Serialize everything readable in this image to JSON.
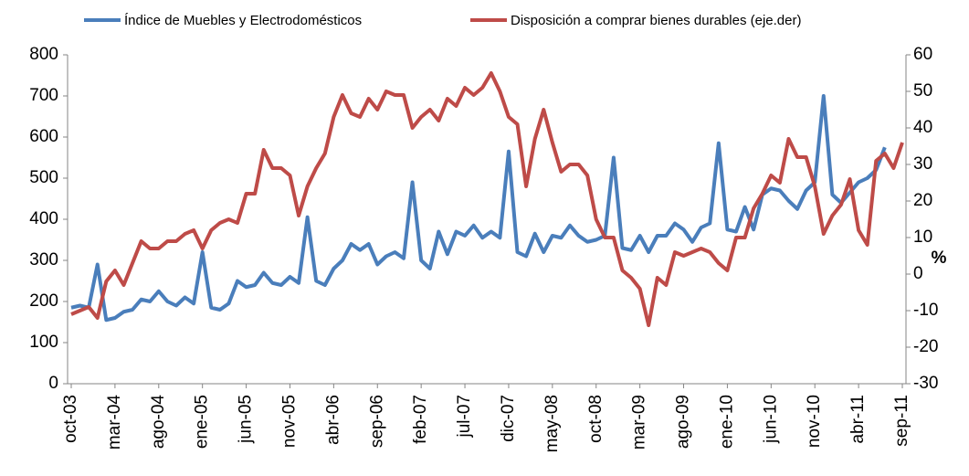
{
  "chart_data": {
    "type": "line",
    "categories": [
      "oct-03",
      null,
      null,
      null,
      null,
      "mar-04",
      null,
      null,
      null,
      null,
      "ago-04",
      null,
      null,
      null,
      null,
      "ene-05",
      null,
      null,
      null,
      null,
      "jun-05",
      null,
      null,
      null,
      null,
      "nov-05",
      null,
      null,
      null,
      null,
      "abr-06",
      null,
      null,
      null,
      null,
      "sep-06",
      null,
      null,
      null,
      null,
      "feb-07",
      null,
      null,
      null,
      null,
      "jul-07",
      null,
      null,
      null,
      null,
      "dic-07",
      null,
      null,
      null,
      null,
      "may-08",
      null,
      null,
      null,
      null,
      "oct-08",
      null,
      null,
      null,
      null,
      "mar-09",
      null,
      null,
      null,
      null,
      "ago-09",
      null,
      null,
      null,
      null,
      "ene-10",
      null,
      null,
      null,
      null,
      "jun-10",
      null,
      null,
      null,
      null,
      "nov-10",
      null,
      null,
      null,
      null,
      "abr-11",
      null,
      null,
      null,
      null,
      "sep-11"
    ],
    "series": [
      {
        "name": "Índice de Muebles y Electrodomésticos",
        "color": "#4a7ebb",
        "values": [
          185,
          190,
          185,
          290,
          155,
          160,
          175,
          180,
          205,
          200,
          225,
          200,
          190,
          210,
          195,
          320,
          185,
          180,
          195,
          250,
          235,
          240,
          270,
          245,
          240,
          260,
          245,
          405,
          250,
          240,
          280,
          300,
          340,
          325,
          340,
          290,
          310,
          320,
          305,
          490,
          300,
          280,
          370,
          315,
          370,
          360,
          385,
          355,
          370,
          355,
          565,
          320,
          310,
          365,
          320,
          360,
          355,
          385,
          360,
          345,
          350,
          360,
          550,
          330,
          325,
          360,
          320,
          360,
          360,
          390,
          375,
          345,
          380,
          390,
          585,
          375,
          370,
          430,
          375,
          460,
          475,
          470,
          445,
          425,
          470,
          490,
          700,
          460,
          440,
          465,
          490,
          500,
          520,
          575,
          null,
          null
        ]
      },
      {
        "name": "Disposición a comprar bienes durables (eje.der)",
        "color": "#be4b48",
        "axis": "y2",
        "values": [
          -11,
          -10,
          -9,
          -12,
          -2,
          1,
          -3,
          3,
          9,
          7,
          7,
          9,
          9,
          11,
          12,
          7,
          12,
          14,
          15,
          14,
          22,
          22,
          34,
          29,
          29,
          27,
          16,
          24,
          29,
          33,
          43,
          49,
          44,
          43,
          48,
          45,
          50,
          49,
          49,
          40,
          43,
          45,
          42,
          48,
          46,
          51,
          49,
          51,
          55,
          50,
          43,
          41,
          24,
          37,
          45,
          36,
          28,
          30,
          30,
          27,
          15,
          10,
          10,
          1,
          -1,
          -4,
          -14,
          -1,
          -3,
          6,
          5,
          6,
          7,
          6,
          3,
          1,
          10,
          10,
          18,
          22,
          27,
          25,
          37,
          32,
          32,
          24,
          11,
          16,
          19,
          26,
          12,
          8,
          31,
          33,
          29,
          36
        ]
      }
    ],
    "ylim": [
      0,
      800
    ],
    "yticks": [
      0,
      100,
      200,
      300,
      400,
      500,
      600,
      700,
      800
    ],
    "y2lim": [
      -30,
      60
    ],
    "y2ticks": [
      -30,
      -20,
      -10,
      0,
      10,
      20,
      30,
      40,
      50,
      60
    ],
    "y2label": "%",
    "legend": "top"
  }
}
